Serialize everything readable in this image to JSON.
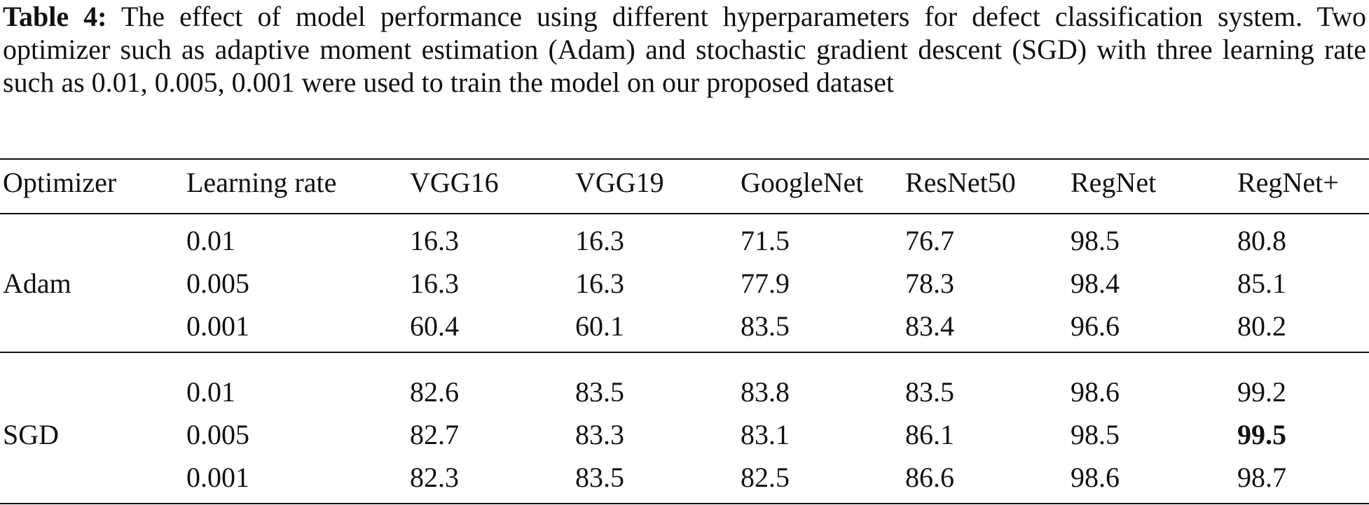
{
  "caption": {
    "label": "Table 4:",
    "text": "The effect of model performance using different hyperparameters for defect classification system. Two optimizer such as adaptive moment estimation (Adam) and stochastic gradient descent (SGD) with three learning rate such as 0.01, 0.005, 0.001 were used to train the model on our proposed dataset"
  },
  "table": {
    "headers": [
      "Optimizer",
      "Learning rate",
      "VGG16",
      "VGG19",
      "GoogleNet",
      "ResNet50",
      "RegNet",
      "RegNet+"
    ],
    "groups": [
      {
        "optimizer": "Adam",
        "rows": [
          [
            "0.01",
            "16.3",
            "16.3",
            "71.5",
            "76.7",
            "98.5",
            "80.8"
          ],
          [
            "0.005",
            "16.3",
            "16.3",
            "77.9",
            "78.3",
            "98.4",
            "85.1"
          ],
          [
            "0.001",
            "60.4",
            "60.1",
            "83.5",
            "83.4",
            "96.6",
            "80.2"
          ]
        ]
      },
      {
        "optimizer": "SGD",
        "rows": [
          [
            "0.01",
            "82.6",
            "83.5",
            "83.8",
            "83.5",
            "98.6",
            "99.2"
          ],
          [
            "0.005",
            "82.7",
            "83.3",
            "83.1",
            "86.1",
            "98.5",
            "99.5"
          ],
          [
            "0.001",
            "82.3",
            "83.5",
            "82.5",
            "86.6",
            "98.6",
            "98.7"
          ]
        ]
      }
    ]
  }
}
